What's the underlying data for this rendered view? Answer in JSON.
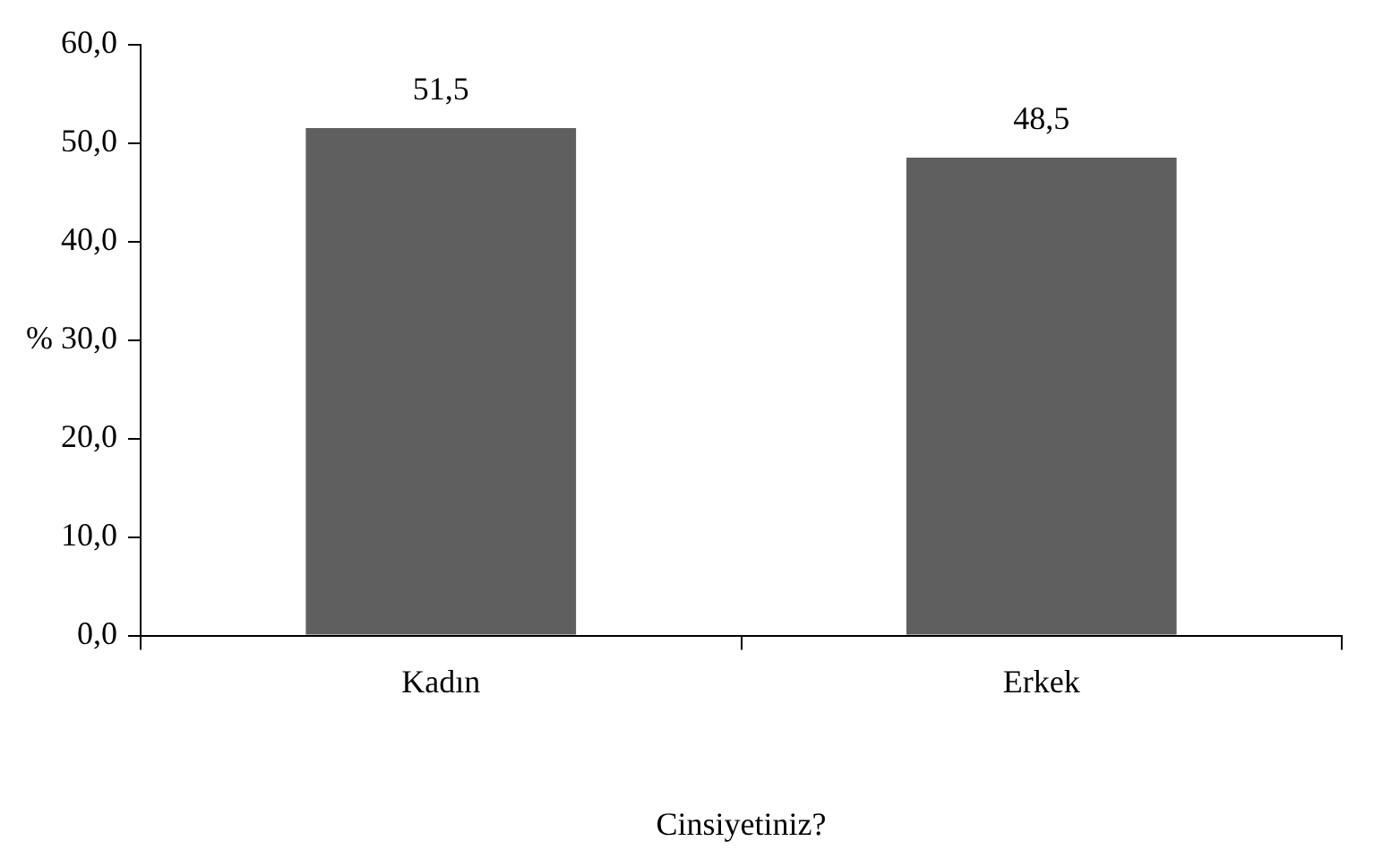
{
  "chart_data": {
    "type": "bar",
    "categories": [
      "Kadın",
      "Erkek"
    ],
    "values": [
      51.5,
      48.5
    ],
    "color": "#5f5f5f",
    "value_labels": [
      "51,5",
      "48,5"
    ],
    "xlabel": "Cinsiyetiniz?",
    "ylabel": "%",
    "ylim": [
      0,
      60
    ],
    "yticks": [
      {
        "value": 0,
        "label": "0,0"
      },
      {
        "value": 10,
        "label": "10,0"
      },
      {
        "value": 20,
        "label": "20,0"
      },
      {
        "value": 30,
        "label": "30,0"
      },
      {
        "value": 40,
        "label": "40,0"
      },
      {
        "value": 50,
        "label": "50,0"
      },
      {
        "value": 60,
        "label": "60,0"
      }
    ],
    "grid": false,
    "legend": false
  }
}
